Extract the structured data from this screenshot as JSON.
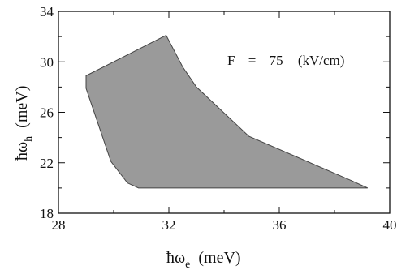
{
  "chart_data": {
    "type": "area",
    "title": "",
    "xlabel": {
      "prefix": "ħω",
      "subscript": "e",
      "units": "(meV)"
    },
    "ylabel": {
      "prefix": "ħω",
      "subscript": "h",
      "units": "(meV)"
    },
    "xlim": [
      28,
      40
    ],
    "ylim": [
      18,
      34
    ],
    "xticks": [
      "28",
      "32",
      "36",
      "40"
    ],
    "yticks": [
      "18",
      "22",
      "26",
      "30",
      "34"
    ],
    "xtick_values": [
      28,
      32,
      36,
      40
    ],
    "ytick_values": [
      18,
      22,
      26,
      30,
      34
    ],
    "annotation": {
      "param": "F",
      "eq": "=",
      "value": "75",
      "units": "(kV/cm)"
    },
    "region_color": "#9a9a9a",
    "region": {
      "x": [
        29.0,
        31.9,
        32.5,
        33.0,
        34.9,
        38.6,
        39.2,
        30.9,
        30.5,
        29.9,
        29.0,
        29.0
      ],
      "y": [
        28.9,
        32.1,
        29.6,
        28.0,
        24.1,
        20.6,
        20.0,
        20.0,
        20.4,
        22.1,
        27.9,
        28.9
      ]
    },
    "grid": false,
    "legend": "none"
  }
}
